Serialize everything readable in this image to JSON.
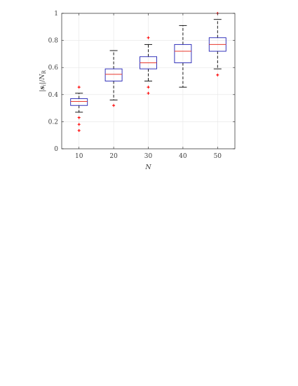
{
  "chart_data": {
    "type": "box",
    "title": "",
    "xlabel": "N",
    "ylabel": "|s_i|/N_R",
    "ylabel_parts": {
      "left_bar": "|",
      "s": "s",
      "sub_i": "i",
      "mid": "|/",
      "n": "N",
      "sub_r": "R"
    },
    "ylim": [
      0,
      1
    ],
    "grid": true,
    "yticks": [
      "0",
      "0.2",
      "0.4",
      "0.6",
      "0.8",
      "1"
    ],
    "yticks_values": [
      0,
      0.2,
      0.4,
      0.6,
      0.8,
      1
    ],
    "categories": [
      "10",
      "20",
      "30",
      "40",
      "50"
    ],
    "boxes": [
      {
        "category": "10",
        "whisker_low": 0.27,
        "q1": 0.32,
        "median": 0.35,
        "q3": 0.37,
        "whisker_high": 0.41,
        "outliers": [
          0.455,
          0.23,
          0.18,
          0.135
        ]
      },
      {
        "category": "20",
        "whisker_low": 0.36,
        "q1": 0.5,
        "median": 0.55,
        "q3": 0.59,
        "whisker_high": 0.725,
        "outliers": [
          0.32
        ]
      },
      {
        "category": "30",
        "whisker_low": 0.5,
        "q1": 0.59,
        "median": 0.635,
        "q3": 0.68,
        "whisker_high": 0.77,
        "outliers": [
          0.82,
          0.455,
          0.41
        ]
      },
      {
        "category": "40",
        "whisker_low": 0.455,
        "q1": 0.635,
        "median": 0.72,
        "q3": 0.77,
        "whisker_high": 0.91,
        "outliers": []
      },
      {
        "category": "50",
        "whisker_low": 0.59,
        "q1": 0.72,
        "median": 0.77,
        "q3": 0.82,
        "whisker_high": 0.955,
        "outliers": [
          1.0,
          0.545
        ]
      }
    ],
    "colors": {
      "box": "#1f1fb4",
      "median": "#e8382c",
      "whisker": "#000000",
      "outlier": "#ff0000",
      "grid": "#e6e6e6",
      "axis": "#262626"
    }
  }
}
